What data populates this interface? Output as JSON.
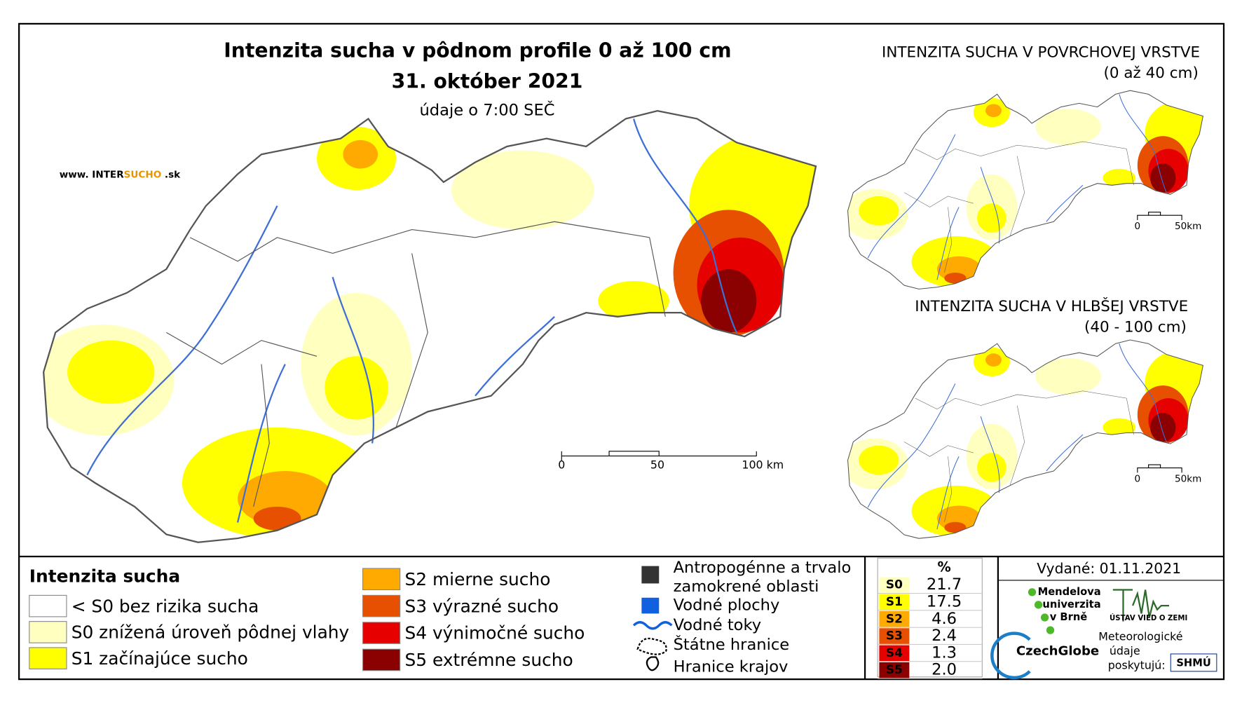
{
  "map": {
    "title": "Intenzita sucha v pôdnom profile 0 až 100 cm",
    "date": "31. október 2021",
    "subtitle": "údaje o 7:00 SEČ",
    "logo": {
      "prefix": "www. INTER",
      "brand": "SUCHO",
      "suffix": " .sk"
    },
    "scale": [
      "0",
      "50",
      "100 km"
    ],
    "insets": [
      {
        "title": "INTENZITA SUCHA V POVRCHOVEJ VRSTVE",
        "subtitle": "(0 až 40 cm)",
        "scale": [
          "0",
          "50km"
        ]
      },
      {
        "title": "INTENZITA SUCHA V HLBŠEJ VRSTVE",
        "subtitle": "(40 - 100 cm)",
        "scale": [
          "0",
          "50km"
        ]
      }
    ]
  },
  "legend": {
    "title": "Intenzita sucha",
    "items": [
      {
        "label": "< S0 bez rizika sucha",
        "color": "#ffffff"
      },
      {
        "label": "S0 znížená úroveň pôdnej vlahy",
        "color": "#ffffc0"
      },
      {
        "label": "S1 začínajúce sucho",
        "color": "#ffff00"
      },
      {
        "label": "S2 mierne sucho",
        "color": "#ffaa00"
      },
      {
        "label": "S3 výrazné sucho",
        "color": "#e65000"
      },
      {
        "label": "S4 výnimočné sucho",
        "color": "#e60000"
      },
      {
        "label": "S5 extrémne sucho",
        "color": "#8b0000"
      }
    ],
    "symbols": [
      "Antropogénne a trvalo zamokrené oblasti",
      "Vodné plochy",
      "Vodné toky",
      "Štátne hranice",
      "Hranice krajov"
    ]
  },
  "stats": {
    "header": "%",
    "rows": [
      {
        "class": "S0",
        "value": "21.7",
        "color": "#ffffc0"
      },
      {
        "class": "S1",
        "value": "17.5",
        "color": "#ffff00"
      },
      {
        "class": "S2",
        "value": "4.6",
        "color": "#ffaa00"
      },
      {
        "class": "S3",
        "value": "2.4",
        "color": "#e65000"
      },
      {
        "class": "S4",
        "value": "1.3",
        "color": "#e60000"
      },
      {
        "class": "S5",
        "value": "2.0",
        "color": "#8b0000"
      }
    ]
  },
  "credits": {
    "issued": "Vydané: 01.11.2021",
    "mendel": [
      "Mendelova",
      "univerzita",
      "v Brně"
    ],
    "czechglobe": "CzechGlobe",
    "ustav": "ÚSTAV VIED O ZEMI",
    "provided": [
      "Meteorologické",
      "údaje",
      "poskytujú:"
    ],
    "shmu": "SHMÚ"
  }
}
